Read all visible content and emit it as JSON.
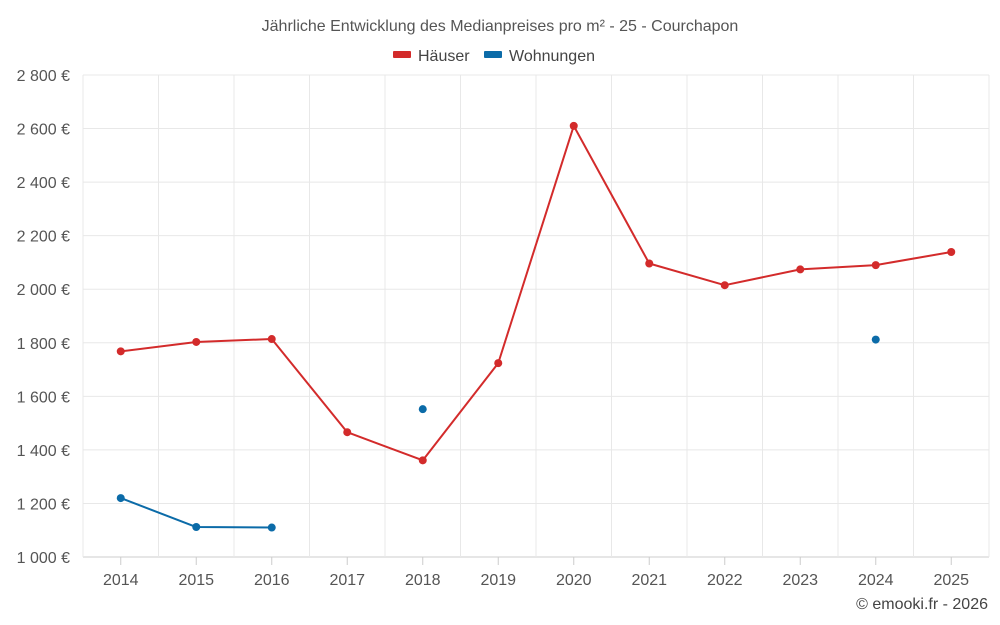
{
  "chart_data": {
    "type": "line",
    "title": "Jährliche Entwicklung des Medianpreises pro m² - 25 - Courchapon",
    "categories": [
      "2014",
      "2015",
      "2016",
      "2017",
      "2018",
      "2019",
      "2020",
      "2021",
      "2022",
      "2023",
      "2024",
      "2025"
    ],
    "series": [
      {
        "name": "Häuser",
        "color": "#d32b2b",
        "values": [
          1768,
          1803,
          1814,
          1466,
          1361,
          1724,
          2610,
          2096,
          2015,
          2074,
          2090,
          2139
        ]
      },
      {
        "name": "Wohnungen",
        "color": "#0b6ba8",
        "values": [
          1220,
          1112,
          1110,
          null,
          1552,
          null,
          null,
          null,
          null,
          null,
          1812,
          null
        ]
      }
    ],
    "ylim": [
      1000,
      2800
    ],
    "yticks": [
      1000,
      1200,
      1400,
      1600,
      1800,
      2000,
      2200,
      2400,
      2600,
      2800
    ],
    "ytick_labels": [
      "1 000 €",
      "1 200 €",
      "1 400 €",
      "1 600 €",
      "1 800 €",
      "2 000 €",
      "2 200 €",
      "2 400 €",
      "2 600 €",
      "2 800 €"
    ],
    "xlabel": "",
    "ylabel": "",
    "grid": true,
    "legend": "top-center"
  },
  "credit": "© emooki.fr - 2026"
}
